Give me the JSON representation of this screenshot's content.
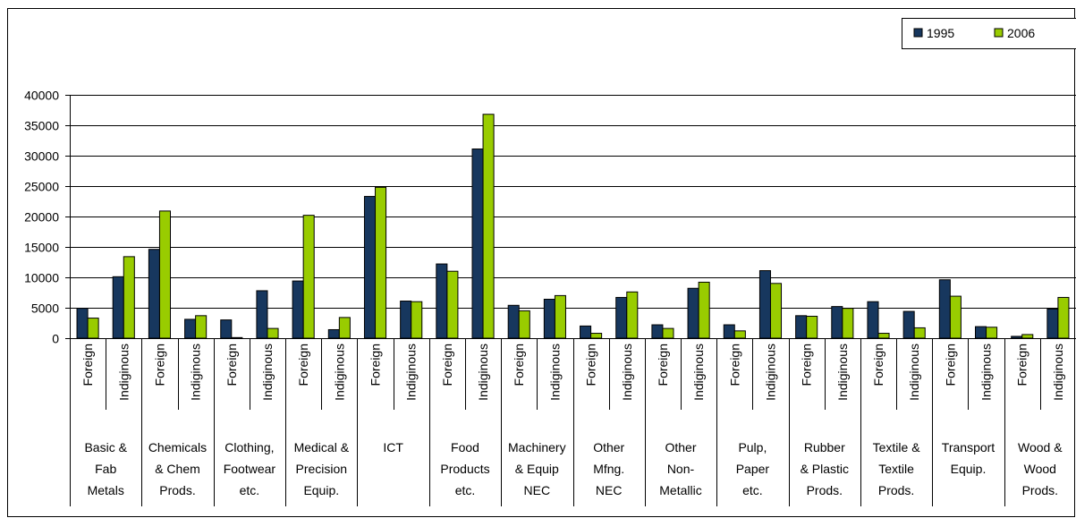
{
  "chart_data": {
    "type": "bar",
    "legend_position": "top-right",
    "grid": true,
    "ylim": [
      0,
      40000
    ],
    "yticks": [
      0,
      5000,
      10000,
      15000,
      20000,
      25000,
      30000,
      35000,
      40000
    ],
    "groups": [
      {
        "label": [
          "Basic &",
          "Fab",
          "Metals"
        ]
      },
      {
        "label": [
          "Chemicals",
          "& Chem",
          "Prods."
        ]
      },
      {
        "label": [
          "Clothing,",
          "Footwear",
          "etc."
        ]
      },
      {
        "label": [
          "Medical &",
          "Precision",
          "Equip."
        ]
      },
      {
        "label": [
          "ICT"
        ]
      },
      {
        "label": [
          "Food",
          "Products",
          "etc."
        ]
      },
      {
        "label": [
          "Machinery",
          "& Equip",
          "NEC"
        ]
      },
      {
        "label": [
          "Other",
          "Mfng.",
          "NEC"
        ]
      },
      {
        "label": [
          "Other",
          "Non-",
          "Metallic"
        ]
      },
      {
        "label": [
          "Pulp,",
          "Paper",
          "etc."
        ]
      },
      {
        "label": [
          "Rubber",
          "& Plastic",
          "Prods."
        ]
      },
      {
        "label": [
          "Textile &",
          "Textile",
          "Prods."
        ]
      },
      {
        "label": [
          "Transport",
          "Equip."
        ]
      },
      {
        "label": [
          "Wood &",
          "Wood",
          "Prods."
        ]
      }
    ],
    "subcategories": [
      "Foreign",
      "Indiginous",
      "Foreign",
      "Indiginous",
      "Foreign",
      "Indiginous",
      "Foreign",
      "Indiginous",
      "Foreign",
      "Indiginous",
      "Foreign",
      "Indiginous",
      "Foreign",
      "Indiginous",
      "Foreign",
      "Indiginous",
      "Foreign",
      "Indiginous",
      "Foreign",
      "Indiginous",
      "Foreign",
      "Indiginous",
      "Foreign",
      "Indiginous",
      "Foreign",
      "Indiginous",
      "Foreign",
      "Indiginous"
    ],
    "series": [
      {
        "name": "1995",
        "color": "#17375E",
        "values": [
          4900,
          10100,
          14600,
          3100,
          3000,
          7800,
          9400,
          1400,
          23300,
          6100,
          12200,
          31100,
          5400,
          6400,
          2000,
          6700,
          2200,
          8200,
          2200,
          11100,
          3700,
          5200,
          6000,
          4400,
          9600,
          1900,
          300,
          4800
        ]
      },
      {
        "name": "2006",
        "color": "#99CC00",
        "values": [
          3300,
          13400,
          20900,
          3700,
          100,
          1600,
          20200,
          3400,
          24800,
          6000,
          11000,
          36800,
          4500,
          7000,
          800,
          7600,
          1600,
          9200,
          1200,
          9000,
          3600,
          4900,
          800,
          1700,
          6900,
          1800,
          600,
          6700
        ]
      }
    ]
  }
}
